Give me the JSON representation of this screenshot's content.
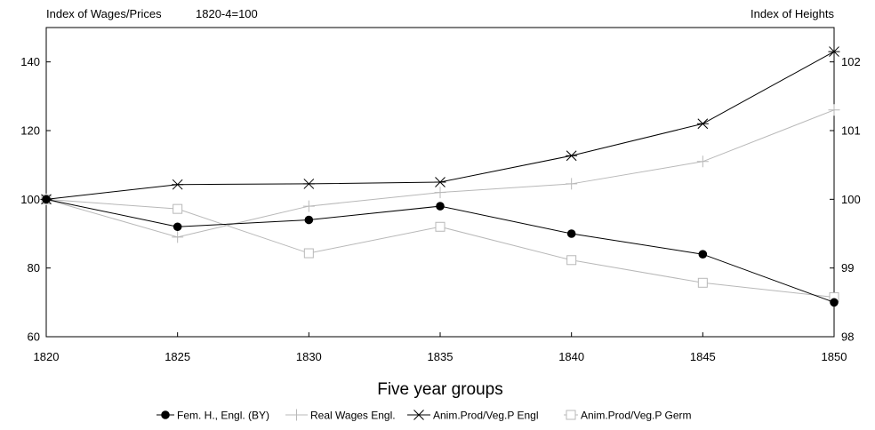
{
  "chart_data": {
    "type": "line",
    "left_axis_title": "Index of Wages/Prices",
    "base_note": "1820-4=100",
    "right_axis_title": "Index of Heights",
    "xlabel": "Five year groups",
    "categories": [
      "1820",
      "1825",
      "1830",
      "1835",
      "1840",
      "1845",
      "1850"
    ],
    "y_left": {
      "range": [
        60,
        150
      ],
      "ticks": [
        "60",
        "80",
        "100",
        "120",
        "140"
      ],
      "tick_values": [
        60,
        80,
        100,
        120,
        140
      ]
    },
    "y_right": {
      "range": [
        98,
        102.5
      ],
      "ticks": [
        "98",
        "99",
        "100",
        "101",
        "102"
      ],
      "tick_values": [
        98,
        99,
        100,
        101,
        102
      ]
    },
    "grid": false,
    "legend_position": "bottom",
    "series": [
      {
        "name": "Fem. H., Engl. (BY)",
        "axis": "right",
        "marker": "filled-circle",
        "color": "#000000",
        "values": [
          100,
          99.6,
          99.7,
          99.9,
          99.5,
          99.2,
          98.5
        ]
      },
      {
        "name": "Real Wages Engl.",
        "axis": "left",
        "marker": "plus",
        "color": "#b8b8b8",
        "values": [
          100,
          89,
          98,
          102,
          104.5,
          111,
          126
        ]
      },
      {
        "name": "Anim.Prod/Veg.P Engl",
        "axis": "left",
        "marker": "star",
        "color": "#000000",
        "values": [
          100,
          104.3,
          104.5,
          105,
          112.7,
          122,
          143
        ]
      },
      {
        "name": "Anim.Prod/Veg.P Germ",
        "axis": "left",
        "marker": "open-square",
        "color": "#b8b8b8",
        "values": [
          100,
          97.2,
          84.3,
          92,
          82.3,
          75.7,
          71.5
        ]
      }
    ]
  }
}
